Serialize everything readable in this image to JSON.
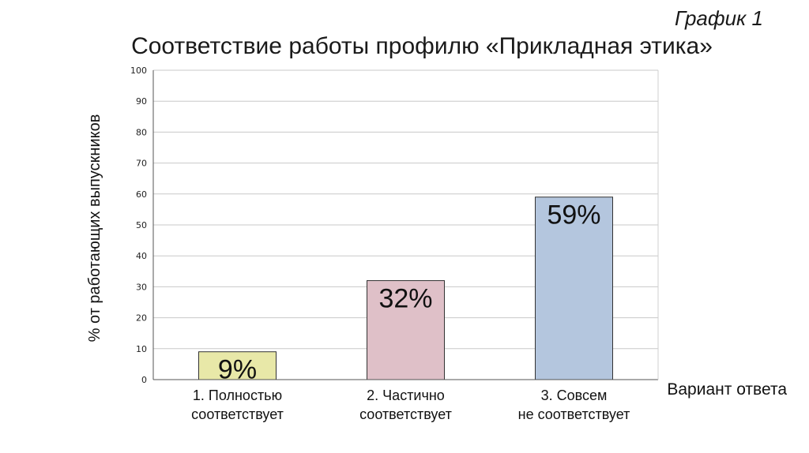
{
  "header": {
    "graph_number": "График 1"
  },
  "chart_data": {
    "type": "bar",
    "title": "Соответствие работы профилю «Прикладная этика»",
    "xlabel": "Вариант ответа",
    "ylabel": "% от работающих выпускников",
    "ylim": [
      0,
      100
    ],
    "yticks": [
      0,
      10,
      20,
      30,
      40,
      50,
      60,
      70,
      80,
      90,
      100
    ],
    "grid": true,
    "categories": [
      [
        "1. Полностью",
        "соответствует"
      ],
      [
        "2. Частично",
        "соответствует"
      ],
      [
        "3. Совсем",
        "не соответствует"
      ]
    ],
    "values": [
      9,
      32,
      59
    ],
    "data_labels": [
      "9%",
      "32%",
      "59%"
    ],
    "colors": [
      "#e8e8a8",
      "#dfc0c8",
      "#b4c6de"
    ]
  }
}
